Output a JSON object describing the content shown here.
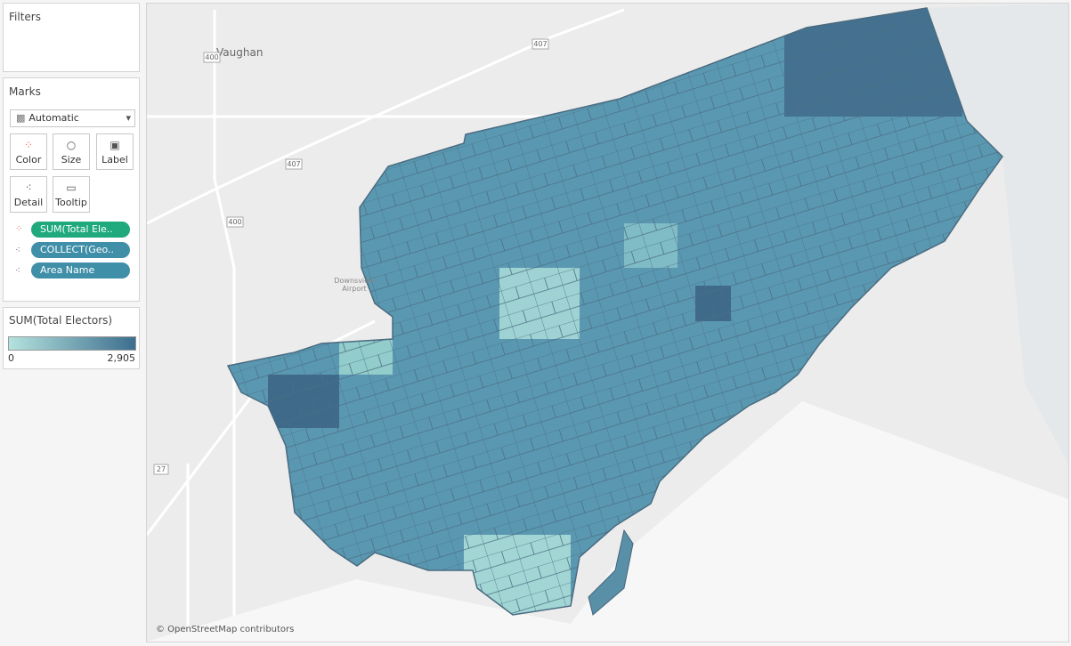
{
  "filters": {
    "title": "Filters"
  },
  "marks": {
    "title": "Marks",
    "mark_type": "Automatic",
    "buttons": [
      "Color",
      "Size",
      "Label",
      "Detail",
      "Tooltip"
    ],
    "fields": [
      "SUM(Total Ele..",
      "COLLECT(Geo..",
      "Area Name"
    ]
  },
  "legend": {
    "title": "SUM(Total Electors)",
    "min": "0",
    "max": "2,905"
  },
  "map": {
    "labels": [
      "Vaughan",
      "407",
      "400",
      "27",
      "Downsview",
      "Airport"
    ],
    "attribution": "© OpenStreetMap contributors"
  }
}
